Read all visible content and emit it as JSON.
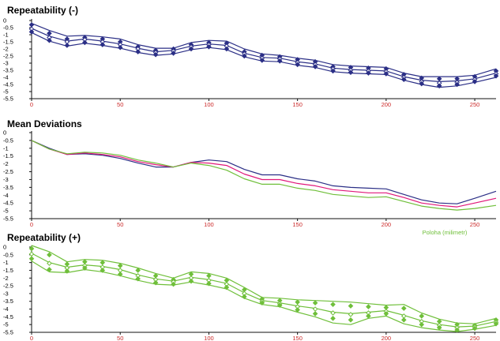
{
  "colors": {
    "navy": "#2b2f86",
    "magenta": "#e0187a",
    "green": "#6fbf3a",
    "xtick_red": "#cc2a2a",
    "axis": "#111111"
  },
  "chart_data": [
    {
      "type": "line",
      "title": "Repeatability (-)",
      "xlabel": "",
      "ylabel": "",
      "xlim": [
        0,
        262
      ],
      "ylim": [
        -5.5,
        0
      ],
      "xticks": [
        "0",
        "50",
        "100",
        "150",
        "200",
        "250"
      ],
      "yticks": [
        "0",
        "-0.5",
        "-1",
        "-1.5",
        "-2",
        "-2.5",
        "-3",
        "-3.5",
        "-4",
        "-4.5",
        "-5",
        "-5.5"
      ],
      "marker_color": "#2b2f86",
      "series": [
        {
          "style": "line",
          "color": "#2b2f86",
          "x": [
            0,
            10,
            20,
            30,
            40,
            50,
            60,
            70,
            80,
            90,
            100,
            110,
            120,
            130,
            140,
            150,
            160,
            170,
            180,
            190,
            200,
            210,
            220,
            230,
            240,
            250,
            262
          ],
          "values": [
            -0.2,
            -0.7,
            -1.1,
            -1.05,
            -1.15,
            -1.3,
            -1.7,
            -1.95,
            -1.95,
            -1.55,
            -1.4,
            -1.45,
            -2.0,
            -2.35,
            -2.45,
            -2.65,
            -2.8,
            -3.1,
            -3.2,
            -3.25,
            -3.3,
            -3.7,
            -3.95,
            -3.95,
            -3.95,
            -3.85,
            -3.4
          ]
        },
        {
          "style": "line",
          "color": "#2b2f86",
          "x": [
            0,
            10,
            20,
            30,
            40,
            50,
            60,
            70,
            80,
            90,
            100,
            110,
            120,
            130,
            140,
            150,
            160,
            170,
            180,
            190,
            200,
            210,
            220,
            230,
            240,
            250,
            262
          ],
          "values": [
            -0.55,
            -1.1,
            -1.45,
            -1.3,
            -1.45,
            -1.65,
            -1.95,
            -2.2,
            -2.1,
            -1.8,
            -1.65,
            -1.75,
            -2.3,
            -2.6,
            -2.65,
            -2.9,
            -3.05,
            -3.35,
            -3.45,
            -3.5,
            -3.55,
            -3.95,
            -4.2,
            -4.3,
            -4.25,
            -4.1,
            -3.7
          ]
        },
        {
          "style": "line",
          "color": "#2b2f86",
          "x": [
            0,
            10,
            20,
            30,
            40,
            50,
            60,
            70,
            80,
            90,
            100,
            110,
            120,
            130,
            140,
            150,
            160,
            170,
            180,
            190,
            200,
            210,
            220,
            230,
            240,
            250,
            262
          ],
          "values": [
            -0.85,
            -1.45,
            -1.8,
            -1.6,
            -1.75,
            -1.95,
            -2.25,
            -2.45,
            -2.35,
            -2.05,
            -1.9,
            -2.05,
            -2.55,
            -2.85,
            -2.9,
            -3.15,
            -3.3,
            -3.6,
            -3.7,
            -3.75,
            -3.8,
            -4.2,
            -4.5,
            -4.7,
            -4.6,
            -4.35,
            -4.0
          ]
        },
        {
          "style": "markers",
          "x": [
            0,
            10,
            20,
            30,
            40,
            50,
            60,
            70,
            80,
            90,
            100,
            110,
            120,
            130,
            140,
            150,
            160,
            170,
            180,
            190,
            200,
            210,
            220,
            230,
            240,
            250,
            262
          ],
          "values": [
            -0.3,
            -0.9,
            -1.3,
            -1.2,
            -1.3,
            -1.5,
            -1.85,
            -2.1,
            -2.0,
            -1.7,
            -1.55,
            -1.6,
            -2.2,
            -2.45,
            -2.55,
            -2.75,
            -2.9,
            -3.25,
            -3.3,
            -3.35,
            -3.4,
            -3.8,
            -4.05,
            -4.1,
            -4.1,
            -3.95,
            -3.55
          ]
        },
        {
          "style": "markers",
          "x": [
            0,
            10,
            20,
            30,
            40,
            50,
            60,
            70,
            80,
            90,
            100,
            110,
            120,
            130,
            140,
            150,
            160,
            170,
            180,
            190,
            200,
            210,
            220,
            230,
            240,
            250,
            262
          ],
          "values": [
            -0.6,
            -1.2,
            -1.5,
            -1.35,
            -1.5,
            -1.7,
            -2.0,
            -2.25,
            -2.15,
            -1.85,
            -1.7,
            -1.8,
            -2.35,
            -2.65,
            -2.7,
            -2.95,
            -3.1,
            -3.4,
            -3.5,
            -3.55,
            -3.6,
            -4.0,
            -4.3,
            -4.4,
            -4.35,
            -4.15,
            -3.75
          ]
        },
        {
          "style": "markers",
          "x": [
            0,
            10,
            20,
            30,
            40,
            50,
            60,
            70,
            80,
            90,
            100,
            110,
            120,
            130,
            140,
            150,
            160,
            170,
            180,
            190,
            200,
            210,
            220,
            230,
            240,
            250,
            262
          ],
          "values": [
            -0.8,
            -1.4,
            -1.75,
            -1.55,
            -1.7,
            -1.9,
            -2.2,
            -2.4,
            -2.3,
            -2.0,
            -1.85,
            -2.0,
            -2.5,
            -2.8,
            -2.85,
            -3.1,
            -3.25,
            -3.55,
            -3.65,
            -3.7,
            -3.75,
            -4.15,
            -4.45,
            -4.6,
            -4.5,
            -4.3,
            -3.9
          ]
        }
      ]
    },
    {
      "type": "line",
      "title": "Mean Deviations",
      "xlabel": "Poloha (milimetr)",
      "ylabel": "",
      "xlim": [
        0,
        262
      ],
      "ylim": [
        -5.5,
        0
      ],
      "xticks": [
        "0",
        "50",
        "100",
        "150",
        "200",
        "250"
      ],
      "yticks": [
        "0",
        "-0.5",
        "-1",
        "-1.5",
        "-2",
        "-2.5",
        "-3",
        "-3.5",
        "-4",
        "-4.5",
        "-5",
        "-5.5"
      ],
      "series": [
        {
          "style": "line",
          "color": "#2b2f86",
          "x": [
            0,
            10,
            20,
            30,
            40,
            50,
            60,
            70,
            80,
            90,
            100,
            110,
            120,
            130,
            140,
            150,
            160,
            170,
            180,
            190,
            200,
            210,
            220,
            230,
            240,
            250,
            262
          ],
          "values": [
            -0.5,
            -1.0,
            -1.4,
            -1.35,
            -1.45,
            -1.65,
            -1.95,
            -2.2,
            -2.2,
            -1.9,
            -1.75,
            -1.85,
            -2.35,
            -2.7,
            -2.7,
            -2.95,
            -3.1,
            -3.4,
            -3.5,
            -3.55,
            -3.6,
            -3.95,
            -4.3,
            -4.5,
            -4.55,
            -4.2,
            -3.75
          ]
        },
        {
          "style": "line",
          "color": "#e0187a",
          "x": [
            0,
            10,
            20,
            30,
            40,
            50,
            60,
            70,
            80,
            90,
            100,
            110,
            120,
            130,
            140,
            150,
            160,
            170,
            180,
            190,
            200,
            210,
            220,
            230,
            240,
            250,
            262
          ],
          "values": [
            -0.5,
            -1.05,
            -1.4,
            -1.3,
            -1.4,
            -1.55,
            -1.85,
            -2.05,
            -2.2,
            -1.9,
            -1.95,
            -2.1,
            -2.65,
            -3.0,
            -3.0,
            -3.25,
            -3.4,
            -3.65,
            -3.75,
            -3.85,
            -3.85,
            -4.15,
            -4.5,
            -4.65,
            -4.75,
            -4.5,
            -4.2
          ]
        },
        {
          "style": "line",
          "color": "#6fbf3a",
          "x": [
            0,
            10,
            20,
            30,
            40,
            50,
            60,
            70,
            80,
            90,
            100,
            110,
            120,
            130,
            140,
            150,
            160,
            170,
            180,
            190,
            200,
            210,
            220,
            230,
            240,
            250,
            262
          ],
          "values": [
            -0.5,
            -1.05,
            -1.35,
            -1.25,
            -1.3,
            -1.45,
            -1.75,
            -1.95,
            -2.2,
            -1.95,
            -2.1,
            -2.4,
            -2.95,
            -3.3,
            -3.3,
            -3.55,
            -3.7,
            -3.95,
            -4.05,
            -4.15,
            -4.1,
            -4.4,
            -4.7,
            -4.85,
            -4.95,
            -4.85,
            -4.65
          ]
        }
      ]
    },
    {
      "type": "line",
      "title": "Repeatability (+)",
      "xlabel": "",
      "ylabel": "",
      "xlim": [
        0,
        262
      ],
      "ylim": [
        -5.5,
        0
      ],
      "xticks": [
        "0",
        "50",
        "100",
        "150",
        "200",
        "250"
      ],
      "yticks": [
        "0",
        "-0.5",
        "-1",
        "-1.5",
        "-2",
        "-2.5",
        "-3",
        "-3.5",
        "-4",
        "-4.5",
        "-5",
        "-5.5"
      ],
      "marker_color": "#6fbf3a",
      "series": [
        {
          "style": "line",
          "color": "#6fbf3a",
          "x": [
            0,
            10,
            20,
            30,
            40,
            50,
            60,
            70,
            80,
            90,
            100,
            110,
            120,
            130,
            140,
            150,
            160,
            170,
            180,
            190,
            200,
            210,
            220,
            230,
            240,
            250,
            262
          ],
          "values": [
            0.1,
            -0.3,
            -0.95,
            -0.8,
            -0.85,
            -1.05,
            -1.35,
            -1.7,
            -2.0,
            -1.6,
            -1.7,
            -2.0,
            -2.6,
            -3.25,
            -3.3,
            -3.4,
            -3.45,
            -3.5,
            -3.55,
            -3.65,
            -3.75,
            -3.7,
            -4.25,
            -4.65,
            -4.9,
            -4.95,
            -4.6
          ]
        },
        {
          "style": "line",
          "color": "#6fbf3a",
          "x": [
            0,
            10,
            20,
            30,
            40,
            50,
            60,
            70,
            80,
            90,
            100,
            110,
            120,
            130,
            140,
            150,
            160,
            170,
            180,
            190,
            200,
            210,
            220,
            230,
            240,
            250,
            262
          ],
          "values": [
            -0.4,
            -1.0,
            -1.3,
            -1.15,
            -1.25,
            -1.45,
            -1.8,
            -2.05,
            -2.2,
            -1.95,
            -2.1,
            -2.35,
            -2.95,
            -3.45,
            -3.6,
            -3.8,
            -3.95,
            -4.2,
            -4.3,
            -4.2,
            -4.1,
            -4.4,
            -4.75,
            -5.0,
            -5.15,
            -5.1,
            -4.8
          ]
        },
        {
          "style": "line",
          "color": "#6fbf3a",
          "x": [
            0,
            10,
            20,
            30,
            40,
            50,
            60,
            70,
            80,
            90,
            100,
            110,
            120,
            130,
            140,
            150,
            160,
            170,
            180,
            190,
            200,
            210,
            220,
            230,
            240,
            250,
            262
          ],
          "values": [
            -0.9,
            -1.6,
            -1.65,
            -1.45,
            -1.6,
            -1.85,
            -2.15,
            -2.4,
            -2.45,
            -2.25,
            -2.45,
            -2.7,
            -3.3,
            -3.7,
            -3.85,
            -4.2,
            -4.5,
            -4.9,
            -5.0,
            -4.6,
            -4.45,
            -4.95,
            -5.2,
            -5.35,
            -5.45,
            -5.3,
            -5.05
          ]
        },
        {
          "style": "markers",
          "x": [
            0,
            10,
            20,
            30,
            40,
            50,
            60,
            70,
            80,
            90,
            100,
            110,
            120,
            130,
            140,
            150,
            160,
            170,
            180,
            190,
            200,
            210,
            220,
            230,
            240,
            250,
            262
          ],
          "values": [
            -0.1,
            -0.5,
            -1.1,
            -0.95,
            -1.0,
            -1.2,
            -1.5,
            -1.85,
            -2.1,
            -1.75,
            -1.85,
            -2.15,
            -2.75,
            -3.35,
            -3.45,
            -3.55,
            -3.6,
            -3.7,
            -3.8,
            -3.85,
            -3.9,
            -3.95,
            -4.45,
            -4.8,
            -5.0,
            -5.05,
            -4.7
          ]
        },
        {
          "style": "markers",
          "x": [
            0,
            10,
            20,
            30,
            40,
            50,
            60,
            70,
            80,
            90,
            100,
            110,
            120,
            130,
            140,
            150,
            160,
            170,
            180,
            190,
            200,
            210,
            220,
            230,
            240,
            250,
            262
          ],
          "values": [
            -0.45,
            -1.05,
            -1.35,
            -1.2,
            -1.3,
            -1.5,
            -1.85,
            -2.1,
            -2.25,
            -2.0,
            -2.15,
            -2.4,
            -3.0,
            -3.5,
            -3.65,
            -3.85,
            -4.0,
            -4.25,
            -4.35,
            -4.25,
            -4.15,
            -4.45,
            -4.8,
            -5.05,
            -5.2,
            -5.15,
            -4.85
          ]
        },
        {
          "style": "markers",
          "x": [
            0,
            10,
            20,
            30,
            40,
            50,
            60,
            70,
            80,
            90,
            100,
            110,
            120,
            130,
            140,
            150,
            160,
            170,
            180,
            190,
            200,
            210,
            220,
            230,
            240,
            250,
            262
          ],
          "values": [
            -0.75,
            -1.45,
            -1.55,
            -1.35,
            -1.5,
            -1.75,
            -2.05,
            -2.3,
            -2.4,
            -2.2,
            -2.35,
            -2.6,
            -3.2,
            -3.6,
            -3.75,
            -4.05,
            -4.3,
            -4.6,
            -4.7,
            -4.45,
            -4.3,
            -4.7,
            -5.0,
            -5.2,
            -5.35,
            -5.25,
            -4.95
          ]
        }
      ]
    }
  ]
}
